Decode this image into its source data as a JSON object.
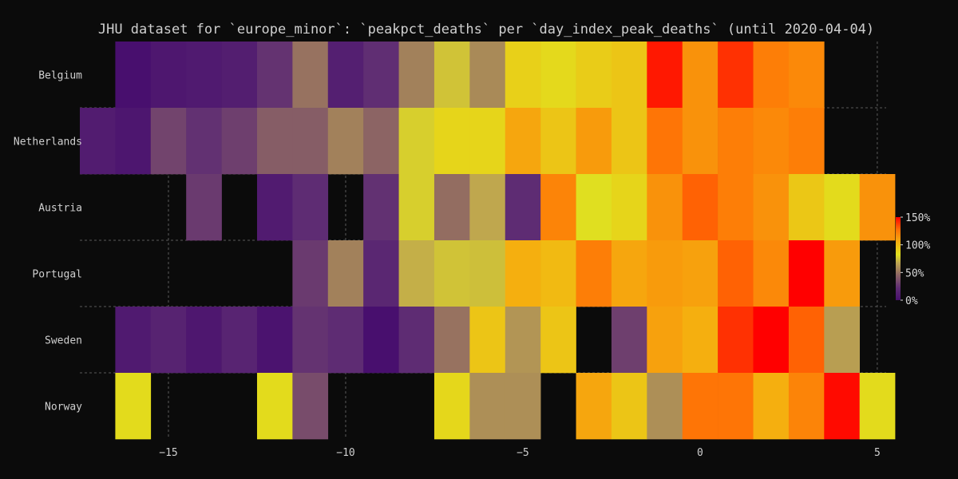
{
  "chart_data": {
    "type": "heatmap",
    "title": "JHU dataset for `europe_minor`: `peakpct_deaths` per `day_index_peak_deaths` (until 2020-04-04)",
    "xlabel": "",
    "ylabel": "",
    "rows": [
      "Belgium",
      "Netherlands",
      "Austria",
      "Portugal",
      "Sweden",
      "Norway"
    ],
    "x": [
      -17,
      -16,
      -15,
      -14,
      -13,
      -12,
      -11,
      -10,
      -9,
      -8,
      -7,
      -6,
      -5,
      -4,
      -3,
      -2,
      -1,
      0,
      1,
      2,
      3,
      4,
      5
    ],
    "x_ticks": [
      -15,
      -10,
      -5,
      0,
      5
    ],
    "xlim": [
      -17.5,
      5.25
    ],
    "colorbar": {
      "min": 0,
      "max": 150,
      "ticks": [
        0,
        50,
        100,
        150
      ],
      "tick_labels": [
        "0%",
        "50%",
        "100%",
        "150%"
      ]
    },
    "grid": true,
    "values": [
      [
        null,
        -1,
        6,
        8,
        11,
        25,
        50,
        12,
        23,
        55,
        75,
        58,
        90,
        86,
        92,
        95,
        145,
        115,
        140,
        122,
        118,
        null,
        null
      ],
      [
        10,
        5,
        32,
        24,
        30,
        42,
        42,
        55,
        45,
        78,
        88,
        88,
        108,
        95,
        112,
        95,
        125,
        115,
        122,
        118,
        122,
        null,
        null
      ],
      [
        null,
        null,
        null,
        28,
        null,
        9,
        22,
        null,
        24,
        78,
        48,
        68,
        22,
        120,
        82,
        88,
        115,
        130,
        122,
        115,
        94,
        85,
        115
      ],
      [
        null,
        null,
        null,
        null,
        null,
        null,
        28,
        55,
        18,
        70,
        75,
        74,
        105,
        100,
        122,
        108,
        112,
        110,
        130,
        118,
        150,
        112,
        null
      ],
      [
        null,
        8,
        15,
        6,
        16,
        3,
        25,
        22,
        0,
        22,
        50,
        95,
        62,
        95,
        null,
        30,
        110,
        105,
        140,
        150,
        130,
        65,
        null
      ],
      [
        null,
        85,
        null,
        null,
        null,
        85,
        35,
        null,
        null,
        null,
        87,
        60,
        60,
        null,
        108,
        95,
        60,
        125,
        125,
        105,
        120,
        148,
        85
      ]
    ]
  }
}
